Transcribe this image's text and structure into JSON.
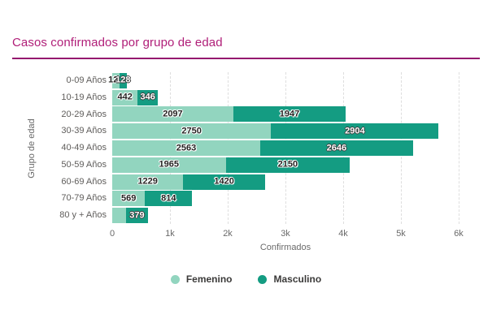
{
  "title": "Casos confirmados por grupo de edad",
  "colors": {
    "title": "#b01e78",
    "underline": "#95186f",
    "femenino": "#92d5bf",
    "masculino": "#149c82",
    "gridline": "#dedede",
    "axis_text": "#6a6a6a",
    "category_text": "#5f5d5b",
    "label_dark": "#252423",
    "label_light": "#ffffff"
  },
  "chart_data": {
    "type": "bar",
    "orientation": "horizontal",
    "stacked": true,
    "title": "Casos confirmados por grupo de edad",
    "xlabel": "Confirmados",
    "ylabel": "Grupo de edad",
    "xlim": [
      0,
      6000
    ],
    "x_ticks": [
      "0",
      "1k",
      "2k",
      "3k",
      "4k",
      "5k",
      "6k"
    ],
    "x_tick_values": [
      0,
      1000,
      2000,
      3000,
      4000,
      5000,
      6000
    ],
    "grid": "vertical-dashed",
    "legend_position": "bottom",
    "categories": [
      "0-09 Años",
      "10-19 Años",
      "20-29 Años",
      "30-39 Años",
      "40-49 Años",
      "50-59 Años",
      "60-69 Años",
      "70-79 Años",
      "80 y + Años"
    ],
    "series": [
      {
        "name": "Femenino",
        "color": "#92d5bf",
        "values": [
          123,
          442,
          2097,
          2750,
          2563,
          1965,
          1229,
          569,
          240
        ],
        "labels": [
          "123",
          "442",
          "2097",
          "2750",
          "2563",
          "1965",
          "1229",
          "569",
          ""
        ],
        "label_colors": [
          "dark",
          "dark",
          "dark",
          "dark",
          "dark",
          "dark",
          "dark",
          "dark",
          "dark"
        ]
      },
      {
        "name": "Masculino",
        "color": "#149c82",
        "values": [
          128,
          346,
          1947,
          2904,
          2646,
          2150,
          1420,
          814,
          379
        ],
        "labels": [
          "128",
          "346",
          "1947",
          "2904",
          "2646",
          "2150",
          "1420",
          "814",
          "379"
        ],
        "label_colors": [
          "light",
          "light",
          "dark",
          "light",
          "light",
          "dark",
          "dark",
          "dark",
          "light"
        ]
      }
    ]
  },
  "legend": {
    "items": [
      {
        "label": "Femenino",
        "color": "#92d5bf"
      },
      {
        "label": "Masculino",
        "color": "#149c82"
      }
    ]
  }
}
